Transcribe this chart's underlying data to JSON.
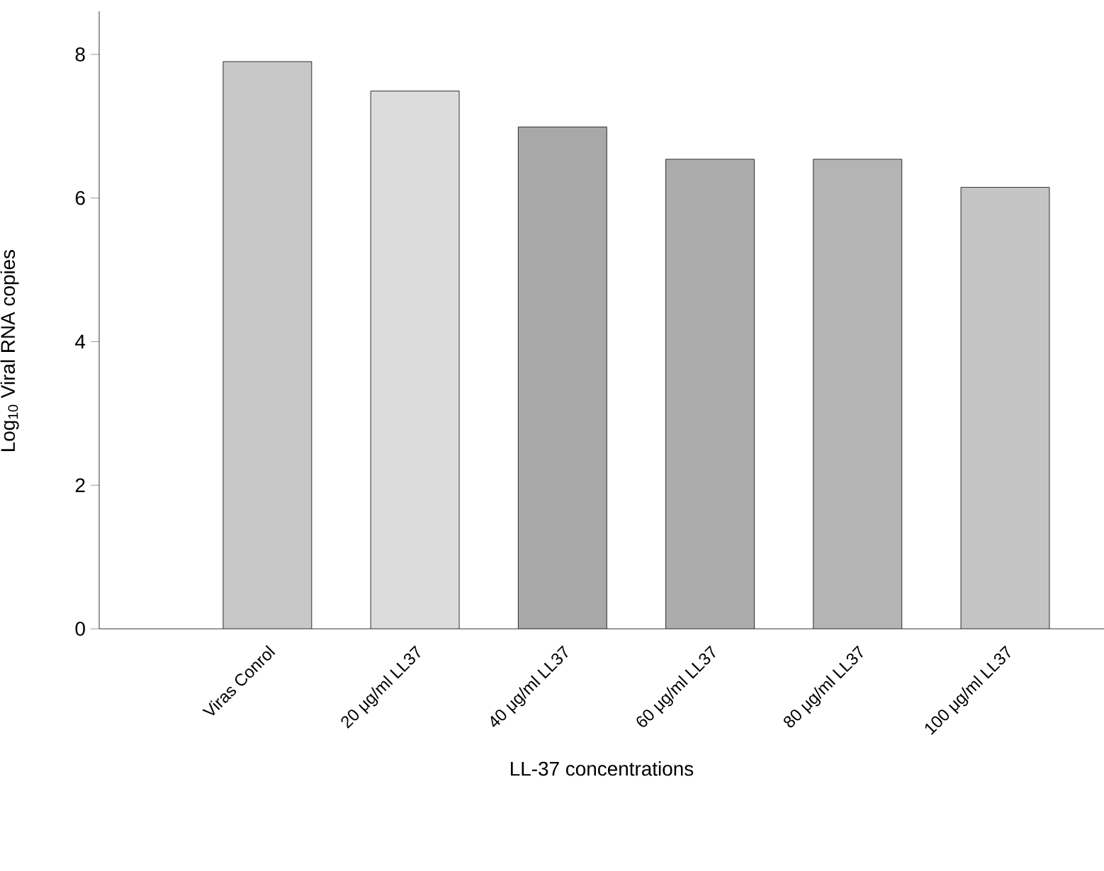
{
  "chart_data": {
    "type": "bar",
    "categories": [
      "Viras Conrol",
      "20 μg/ml LL37",
      "40 μg/ml LL37",
      "60 μg/ml LL37",
      "80 μg/ml LL37",
      "100 μg/ml LL37"
    ],
    "values": [
      7.9,
      7.49,
      6.99,
      6.54,
      6.54,
      6.15
    ],
    "colors": [
      "#c8c8c8",
      "#dcdcdc",
      "#a8a8a8",
      "#acacac",
      "#b4b4b4",
      "#c4c4c4"
    ],
    "xlabel": "LL-37 concentrations",
    "ylabel": "Log$_{10}$ Viral RNA copies",
    "ylim": [
      0,
      8.6
    ],
    "yticks": [
      0,
      2,
      4,
      6,
      8
    ]
  }
}
